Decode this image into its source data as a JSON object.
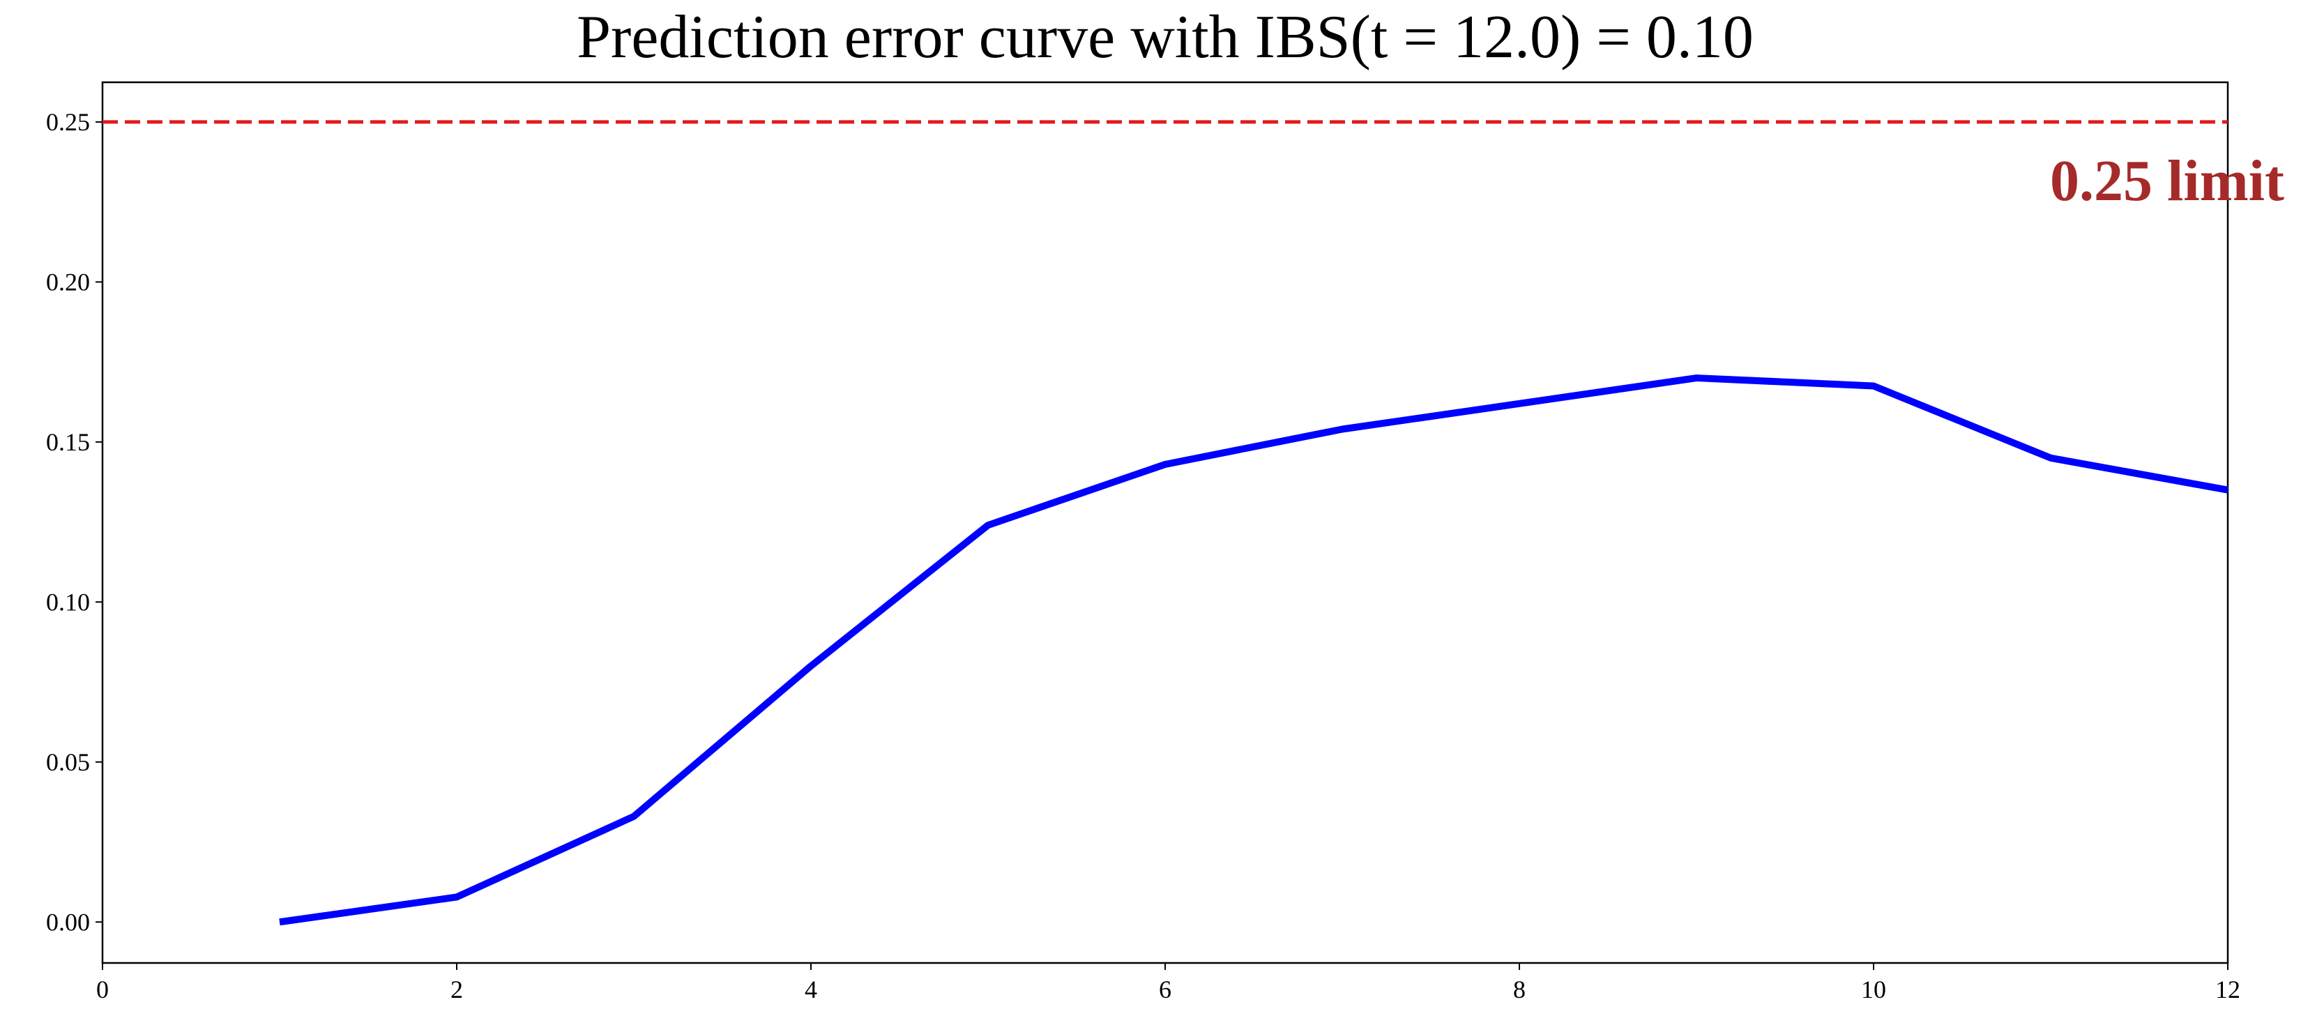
{
  "chart_data": {
    "type": "line",
    "title": "Prediction error curve with IBS(t = 12.0) = 0.10",
    "x": [
      1,
      2,
      3,
      4,
      5,
      6,
      7,
      8,
      9,
      10,
      11,
      12
    ],
    "series": [
      {
        "color": "#0000ff",
        "values": [
          0.0,
          0.0078,
          0.033,
          0.08,
          0.124,
          0.143,
          0.154,
          0.162,
          0.17,
          0.1675,
          0.145,
          0.135
        ]
      }
    ],
    "xlim": [
      0,
      12
    ],
    "xticks": [
      0,
      2,
      4,
      6,
      8,
      10,
      12
    ],
    "ylim": [
      -0.0128,
      0.2624
    ],
    "yticks": [
      {
        "value": 0,
        "label": "0.00"
      },
      0.05,
      {
        "value": 0.1,
        "label": "0.10"
      },
      0.15,
      {
        "value": 0.2,
        "label": "0.20"
      },
      0.25
    ],
    "hline": {
      "value": 0.25,
      "color": "#e31a1c",
      "label": "0.25 limit",
      "label_color": "#a52a2a"
    }
  }
}
